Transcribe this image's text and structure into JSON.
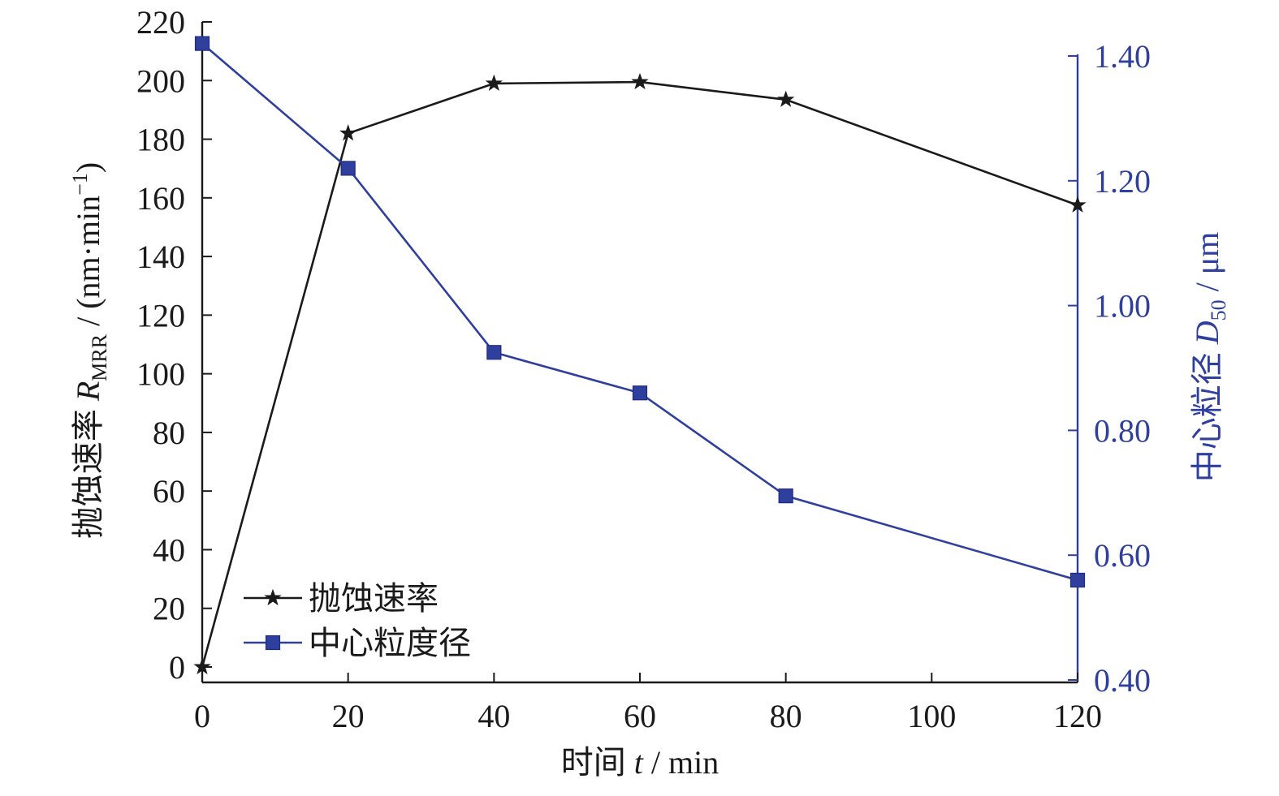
{
  "chart_data": {
    "type": "line",
    "x": [
      0,
      20,
      40,
      60,
      80,
      120
    ],
    "x_ticks": [
      "0",
      "20",
      "40",
      "60",
      "80",
      "100",
      "120"
    ],
    "xlim": [
      0,
      120
    ],
    "xlabel": {
      "cn": "时间",
      "var": "t",
      "rest": " / min"
    },
    "y_left": {
      "ylim": [
        0,
        220
      ],
      "ticks": [
        "0",
        "20",
        "40",
        "60",
        "80",
        "100",
        "120",
        "140",
        "160",
        "180",
        "200",
        "220"
      ],
      "label": {
        "cn": "抛蚀速率",
        "var": "R",
        "sub": "MRR",
        "rest": " / (nm·min",
        "sup": "−1",
        "close": ")"
      }
    },
    "y_right": {
      "ylim": [
        0.4,
        1.4
      ],
      "ticks": [
        "0.40",
        "0.60",
        "0.80",
        "1.00",
        "1.20",
        "1.40"
      ],
      "label": {
        "cn": "中心粒径",
        "var": "D",
        "sub": "50",
        "rest": " / μm"
      },
      "color": "#2f3f9e"
    },
    "series": [
      {
        "name": "抛蚀速率",
        "axis": "left",
        "marker": "star",
        "color": "#1a1a1a",
        "values": [
          0,
          182,
          199,
          199.5,
          193.5,
          157.5
        ]
      },
      {
        "name": "中心粒度径",
        "axis": "right",
        "marker": "square",
        "color": "#2f3f9e",
        "values": [
          1.42,
          1.22,
          0.925,
          0.86,
          0.695,
          0.56
        ]
      }
    ],
    "legend": "bottom-left",
    "grid": false
  }
}
